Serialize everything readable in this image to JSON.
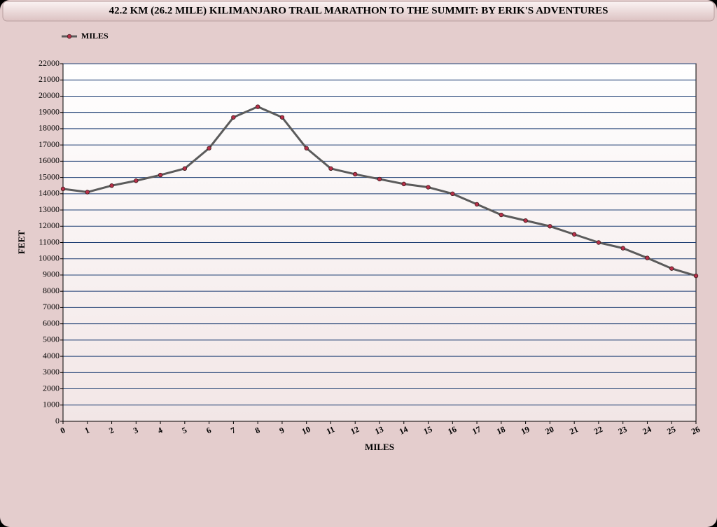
{
  "chart_data": {
    "type": "line",
    "title": "42.2 KM (26.2 MILE)  KILIMANJARO TRAIL MARATHON TO THE SUMMIT:  BY ERIK'S ADVENTURES",
    "x_label": "MILES",
    "y_label": "FEET",
    "x": [
      0,
      1,
      2,
      3,
      4,
      5,
      6,
      7,
      8,
      9,
      10,
      11,
      12,
      13,
      14,
      15,
      16,
      17,
      18,
      19,
      20,
      21,
      22,
      23,
      24,
      25,
      26
    ],
    "series": [
      {
        "name": "MILES",
        "color": "#5b5b5b",
        "marker_color": "#b8304a",
        "values": [
          14300,
          14100,
          14500,
          14800,
          15150,
          15550,
          16800,
          18700,
          19350,
          18700,
          16800,
          15550,
          15200,
          14900,
          14600,
          14400,
          14000,
          13350,
          12700,
          12350,
          12000,
          11500,
          11000,
          10650,
          10050,
          9400,
          8950
        ]
      }
    ],
    "xlim": [
      0,
      26
    ],
    "xticks": [
      0,
      1,
      2,
      3,
      4,
      5,
      6,
      7,
      8,
      9,
      10,
      11,
      12,
      13,
      14,
      15,
      16,
      17,
      18,
      19,
      20,
      21,
      22,
      23,
      24,
      25,
      26
    ],
    "ylim": [
      0,
      22000
    ],
    "yticks": [
      0,
      1000,
      2000,
      3000,
      4000,
      5000,
      6000,
      7000,
      8000,
      9000,
      10000,
      11000,
      12000,
      13000,
      14000,
      15000,
      16000,
      17000,
      18000,
      19000,
      20000,
      21000,
      22000
    ],
    "grid": true,
    "grid_color": "#1f3f73",
    "legend": "top-left"
  }
}
